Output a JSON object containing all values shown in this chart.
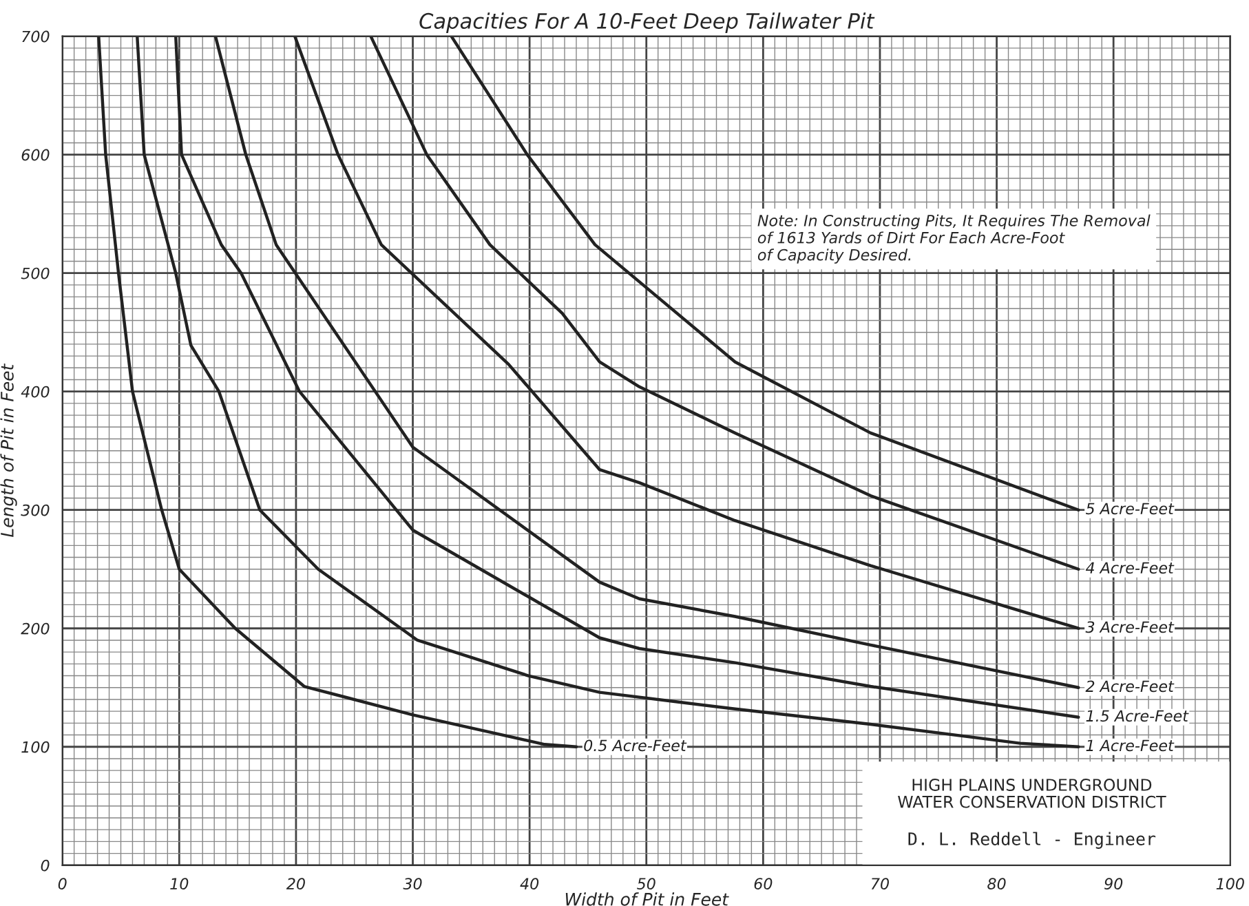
{
  "chart_data": {
    "type": "line",
    "title": "Capacities For A 10-Feet Deep Tailwater Pit",
    "xlabel": "Width of Pit in Feet",
    "ylabel": "Length of Pit in Feet",
    "xlim": [
      0,
      100
    ],
    "ylim": [
      0,
      700
    ],
    "xticks": [
      0,
      10,
      20,
      30,
      40,
      50,
      60,
      70,
      80,
      90,
      100
    ],
    "yticks": [
      0,
      100,
      200,
      300,
      400,
      500,
      600,
      700
    ],
    "grid": true,
    "legend": false,
    "marker": "none",
    "line_style": "solid",
    "color": "#222222",
    "series": [
      {
        "name": "0.5 Acre-Feet",
        "x": [
          3.1,
          3.7,
          4.8,
          6.0,
          8.5,
          10,
          14.8,
          20.7,
          30,
          41.3,
          44
        ],
        "values": [
          700,
          600,
          500,
          400,
          300,
          250,
          200,
          151,
          127,
          102,
          100
        ]
      },
      {
        "name": "1 Acre-Feet",
        "x": [
          6.4,
          7.0,
          9.7,
          11,
          13.4,
          16.9,
          21.9,
          30.4,
          39.9,
          46,
          57.6,
          69.2,
          82,
          87
        ],
        "values": [
          700,
          600,
          500,
          439,
          400,
          300,
          250,
          190,
          160,
          146,
          132,
          119,
          103,
          100
        ]
      },
      {
        "name": "1.5 Acre-Feet",
        "x": [
          9.7,
          10.2,
          13.6,
          15.3,
          20.3,
          30,
          46,
          49.4,
          57.6,
          69.2,
          87
        ],
        "values": [
          700,
          600,
          524,
          500,
          400,
          283,
          192,
          183,
          171,
          151,
          125
        ]
      },
      {
        "name": "2 Acre-Feet",
        "x": [
          13.1,
          15.7,
          18.3,
          30,
          46,
          49.4,
          57.6,
          69.2,
          87
        ],
        "values": [
          700,
          600,
          524,
          353,
          239,
          225,
          210,
          186,
          150
        ]
      },
      {
        "name": "3 Acre-Feet",
        "x": [
          19.9,
          23.6,
          27.3,
          38.2,
          46,
          49.4,
          57.6,
          69.2,
          87
        ],
        "values": [
          700,
          600,
          524,
          423,
          334,
          323,
          291,
          253,
          200
        ]
      },
      {
        "name": "4 Acre-Feet",
        "x": [
          26.4,
          31.2,
          36.6,
          42.8,
          46,
          49.4,
          57.6,
          69.2,
          87
        ],
        "values": [
          700,
          600,
          524,
          466,
          425,
          404,
          365,
          312,
          250
        ]
      },
      {
        "name": "5 Acre-Feet",
        "x": [
          33.3,
          39.8,
          45.6,
          57.6,
          69.2,
          87
        ],
        "values": [
          700,
          600,
          524,
          425,
          365,
          300
        ]
      }
    ],
    "annotations": [
      "Note: In Constructing Pits, It Requires The Removal\nof 1613 Yards of Dirt For Each Acre-Foot\nof Capacity Desired.",
      "HIGH PLAINS UNDERGROUND\nWATER CONSERVATION DISTRICT",
      "D. L. Reddell - Engineer"
    ]
  }
}
